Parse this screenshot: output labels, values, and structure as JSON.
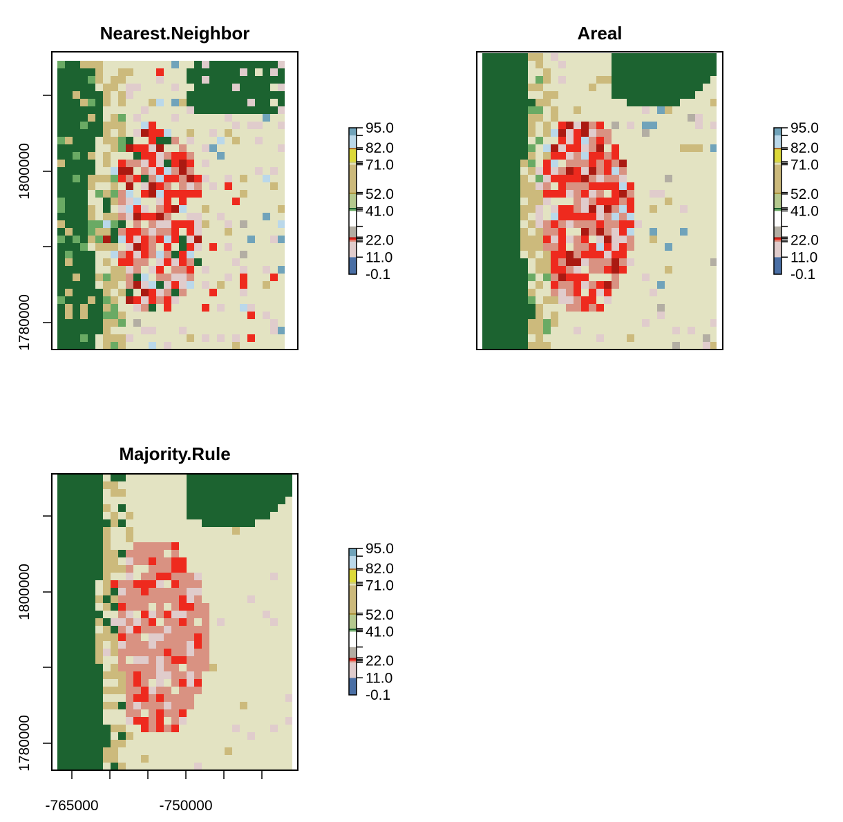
{
  "chart_data": [
    {
      "type": "heatmap",
      "title": "Nearest.Neighbor",
      "y_ticks": [
        1780000,
        1800000
      ],
      "show_y_axis_labels": true,
      "show_x_axis_labels": false,
      "legend_breaks": [
        "95.0",
        "82.0",
        "71.0",
        "52.0",
        "41.0",
        "22.0",
        "11.0",
        "-0.1"
      ],
      "pattern": "speckled"
    },
    {
      "type": "heatmap",
      "title": "Areal",
      "y_ticks": [],
      "show_y_axis_labels": false,
      "show_x_axis_labels": false,
      "legend_breaks": [
        "95.0",
        "82.0",
        "71.0",
        "52.0",
        "41.0",
        "22.0",
        "11.0",
        "-0.1"
      ],
      "pattern": "semi-smooth"
    },
    {
      "type": "heatmap",
      "title": "Majority.Rule",
      "y_ticks": [
        1780000,
        1800000
      ],
      "x_ticks": [
        -765000,
        -750000
      ],
      "show_y_axis_labels": true,
      "show_x_axis_labels": true,
      "legend_breaks": [
        "95.0",
        "82.0",
        "71.0",
        "52.0",
        "41.0",
        "22.0",
        "11.0",
        "-0.1"
      ],
      "pattern": "smooth"
    }
  ],
  "legend_colors": [
    {
      "from": -0.1,
      "to": 11,
      "color": "#4a6fa5"
    },
    {
      "from": 11,
      "to": 21,
      "color": "#e0cccc"
    },
    {
      "from": 21,
      "to": 22,
      "color": "#d99282"
    },
    {
      "from": 22,
      "to": 23,
      "color": "#ee2a1e"
    },
    {
      "from": 23,
      "to": 24,
      "color": "#aa1a12"
    },
    {
      "from": 24,
      "to": 31,
      "color": "#b3aea3"
    },
    {
      "from": 31,
      "to": 41,
      "color": "#ffffff"
    },
    {
      "from": 41,
      "to": 42,
      "color": "#6aaa64"
    },
    {
      "from": 42,
      "to": 43,
      "color": "#1c6330"
    },
    {
      "from": 43,
      "to": 52,
      "color": "#b5c98e"
    },
    {
      "from": 52,
      "to": 53,
      "color": "#a58c30"
    },
    {
      "from": 53,
      "to": 71,
      "color": "#ccba7c"
    },
    {
      "from": 71,
      "to": 72,
      "color": "#e3e3c2"
    },
    {
      "from": 72,
      "to": 73,
      "color": "#caca78"
    },
    {
      "from": 73,
      "to": 81,
      "color": "#dcd939"
    },
    {
      "from": 81,
      "to": 82,
      "color": "#ab6c28"
    },
    {
      "from": 82,
      "to": 90,
      "color": "#bad8ea"
    },
    {
      "from": 90,
      "to": 95,
      "color": "#70a3ba"
    }
  ]
}
